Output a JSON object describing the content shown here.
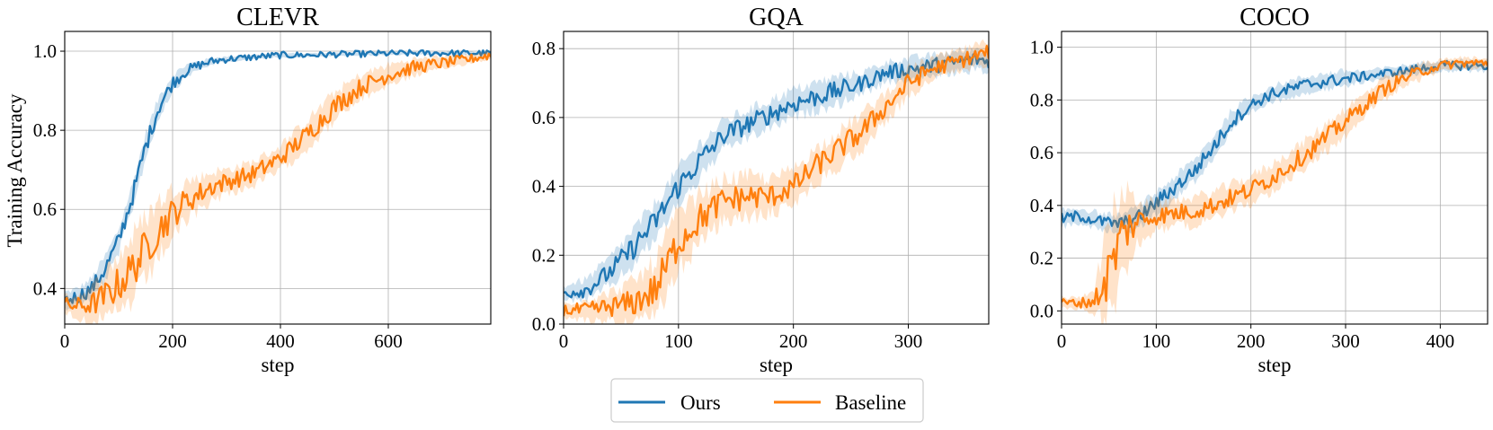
{
  "figure": {
    "ylabel": "Training Accuracy",
    "legend": {
      "placement": "bottom-center"
    }
  },
  "chart_data": [
    {
      "type": "line",
      "title": "CLEVR",
      "xlabel": "step",
      "ylabel": "Training Accuracy",
      "xlim": [
        0,
        790
      ],
      "ylim": [
        0.31,
        1.05
      ],
      "xticks": [
        0,
        200,
        400,
        600
      ],
      "yticks": [
        0.4,
        0.6,
        0.8,
        1.0
      ],
      "xtick_labels": [
        "0",
        "200",
        "400",
        "600"
      ],
      "ytick_labels": [
        "0.4",
        "0.6",
        "0.8",
        "1.0"
      ],
      "grid": true,
      "series": [
        {
          "name": "Ours",
          "color": "#1f77b4",
          "x": [
            0,
            25,
            50,
            75,
            100,
            125,
            150,
            175,
            200,
            225,
            250,
            275,
            300,
            350,
            400,
            450,
            500,
            550,
            600,
            650,
            700,
            750,
            790
          ],
          "y": [
            0.37,
            0.38,
            0.4,
            0.45,
            0.52,
            0.63,
            0.76,
            0.86,
            0.92,
            0.95,
            0.965,
            0.975,
            0.98,
            0.985,
            0.99,
            0.99,
            0.992,
            0.993,
            0.994,
            0.995,
            0.995,
            0.995,
            0.995
          ],
          "spread": [
            0.02,
            0.02,
            0.025,
            0.03,
            0.03,
            0.03,
            0.03,
            0.025,
            0.02,
            0.015,
            0.01,
            0.008,
            0.006,
            0.005,
            0.005,
            0.004,
            0.004,
            0.004,
            0.004,
            0.004,
            0.004,
            0.004,
            0.004
          ]
        },
        {
          "name": "Baseline",
          "color": "#ff7f0e",
          "x": [
            0,
            25,
            50,
            75,
            100,
            125,
            150,
            175,
            200,
            225,
            250,
            275,
            300,
            350,
            400,
            450,
            500,
            550,
            600,
            650,
            700,
            750,
            790
          ],
          "y": [
            0.36,
            0.355,
            0.36,
            0.38,
            0.41,
            0.45,
            0.5,
            0.55,
            0.59,
            0.62,
            0.64,
            0.66,
            0.67,
            0.69,
            0.73,
            0.79,
            0.86,
            0.91,
            0.94,
            0.96,
            0.97,
            0.98,
            0.99
          ],
          "spread": [
            0.02,
            0.03,
            0.04,
            0.06,
            0.07,
            0.08,
            0.08,
            0.07,
            0.06,
            0.05,
            0.04,
            0.035,
            0.03,
            0.03,
            0.03,
            0.035,
            0.035,
            0.03,
            0.025,
            0.02,
            0.015,
            0.01,
            0.01
          ]
        }
      ]
    },
    {
      "type": "line",
      "title": "GQA",
      "xlabel": "step",
      "ylabel": "",
      "xlim": [
        0,
        370
      ],
      "ylim": [
        0.0,
        0.85
      ],
      "xticks": [
        0,
        100,
        200,
        300
      ],
      "yticks": [
        0.0,
        0.2,
        0.4,
        0.6,
        0.8
      ],
      "xtick_labels": [
        "0",
        "100",
        "200",
        "300"
      ],
      "ytick_labels": [
        "0.0",
        "0.2",
        "0.4",
        "0.6",
        "0.8"
      ],
      "grid": true,
      "series": [
        {
          "name": "Ours",
          "color": "#1f77b4",
          "x": [
            0,
            20,
            40,
            60,
            80,
            100,
            120,
            140,
            160,
            180,
            200,
            220,
            240,
            260,
            280,
            300,
            320,
            340,
            360,
            370
          ],
          "y": [
            0.09,
            0.1,
            0.15,
            0.22,
            0.3,
            0.4,
            0.48,
            0.55,
            0.58,
            0.61,
            0.64,
            0.66,
            0.68,
            0.7,
            0.73,
            0.74,
            0.75,
            0.76,
            0.77,
            0.76
          ],
          "spread": [
            0.02,
            0.03,
            0.04,
            0.05,
            0.05,
            0.05,
            0.05,
            0.04,
            0.04,
            0.04,
            0.04,
            0.04,
            0.04,
            0.03,
            0.03,
            0.03,
            0.03,
            0.03,
            0.03,
            0.03
          ]
        },
        {
          "name": "Baseline",
          "color": "#ff7f0e",
          "x": [
            0,
            20,
            40,
            60,
            80,
            90,
            100,
            120,
            140,
            160,
            180,
            200,
            220,
            240,
            260,
            280,
            300,
            320,
            340,
            360,
            370
          ],
          "y": [
            0.04,
            0.04,
            0.05,
            0.06,
            0.1,
            0.17,
            0.24,
            0.31,
            0.36,
            0.37,
            0.37,
            0.4,
            0.46,
            0.51,
            0.56,
            0.63,
            0.7,
            0.74,
            0.76,
            0.78,
            0.79
          ],
          "spread": [
            0.02,
            0.03,
            0.04,
            0.06,
            0.08,
            0.09,
            0.08,
            0.07,
            0.06,
            0.06,
            0.05,
            0.05,
            0.05,
            0.05,
            0.05,
            0.04,
            0.04,
            0.03,
            0.03,
            0.03,
            0.03
          ]
        }
      ]
    },
    {
      "type": "line",
      "title": "COCO",
      "xlabel": "step",
      "ylabel": "",
      "xlim": [
        0,
        450
      ],
      "ylim": [
        -0.05,
        1.06
      ],
      "xticks": [
        0,
        100,
        200,
        300,
        400
      ],
      "yticks": [
        0.0,
        0.2,
        0.4,
        0.6,
        0.8,
        1.0
      ],
      "xtick_labels": [
        "0",
        "100",
        "200",
        "300",
        "400"
      ],
      "ytick_labels": [
        "0.0",
        "0.2",
        "0.4",
        "0.6",
        "0.8",
        "1.0"
      ],
      "grid": true,
      "series": [
        {
          "name": "Ours",
          "color": "#1f77b4",
          "x": [
            0,
            20,
            40,
            60,
            80,
            100,
            120,
            140,
            160,
            180,
            200,
            220,
            240,
            260,
            280,
            300,
            320,
            340,
            360,
            380,
            400,
            420,
            440,
            450
          ],
          "y": [
            0.35,
            0.36,
            0.34,
            0.33,
            0.35,
            0.41,
            0.47,
            0.53,
            0.62,
            0.72,
            0.78,
            0.82,
            0.84,
            0.86,
            0.87,
            0.88,
            0.89,
            0.9,
            0.91,
            0.92,
            0.93,
            0.93,
            0.93,
            0.93
          ],
          "spread": [
            0.03,
            0.03,
            0.03,
            0.03,
            0.04,
            0.04,
            0.04,
            0.04,
            0.04,
            0.04,
            0.03,
            0.03,
            0.03,
            0.03,
            0.03,
            0.03,
            0.02,
            0.02,
            0.02,
            0.02,
            0.02,
            0.02,
            0.02,
            0.02
          ]
        },
        {
          "name": "Baseline",
          "color": "#ff7f0e",
          "x": [
            0,
            20,
            35,
            45,
            55,
            65,
            80,
            100,
            120,
            140,
            160,
            180,
            200,
            220,
            240,
            260,
            280,
            300,
            320,
            340,
            360,
            380,
            400,
            420,
            440,
            450
          ],
          "y": [
            0.03,
            0.03,
            0.04,
            0.1,
            0.2,
            0.3,
            0.34,
            0.36,
            0.37,
            0.38,
            0.4,
            0.43,
            0.46,
            0.5,
            0.55,
            0.6,
            0.66,
            0.72,
            0.78,
            0.84,
            0.88,
            0.91,
            0.93,
            0.94,
            0.94,
            0.94
          ],
          "spread": [
            0.02,
            0.02,
            0.05,
            0.15,
            0.18,
            0.15,
            0.08,
            0.05,
            0.05,
            0.05,
            0.05,
            0.05,
            0.05,
            0.05,
            0.05,
            0.05,
            0.05,
            0.05,
            0.04,
            0.04,
            0.03,
            0.03,
            0.02,
            0.02,
            0.02,
            0.02
          ]
        }
      ]
    }
  ]
}
